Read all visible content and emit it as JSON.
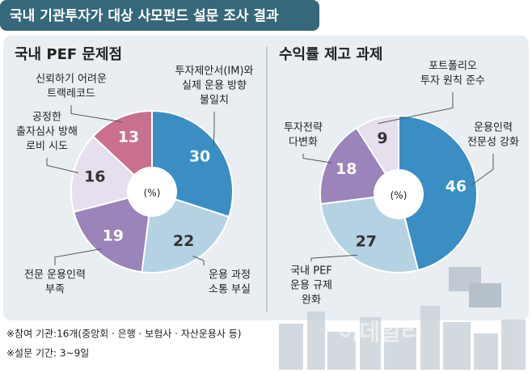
{
  "header": {
    "title": "국내 기관투자가 대상 사모펀드 설문 조사 결과"
  },
  "chart_data": [
    {
      "type": "donut",
      "title": "국내 PEF 문제점",
      "center_label": "(%)",
      "categories": [
        [
          "투자제안서(IM)와",
          "실제 운용 방향",
          "불일치"
        ],
        [
          "운용 과정",
          "소통 부실"
        ],
        [
          "전문 운용인력",
          "부족"
        ],
        [
          "공정한",
          "출자심사 방해",
          "로비 시도"
        ],
        [
          "신뢰하기 어려운",
          "트랙레코드"
        ]
      ],
      "values": [
        30,
        22,
        19,
        16,
        13
      ],
      "colors": [
        "#3a8ec4",
        "#b5d2e2",
        "#9a84b9",
        "#e6dfee",
        "#c9708f"
      ]
    },
    {
      "type": "donut",
      "title": "수익률 제고 과제",
      "center_label": "(%)",
      "categories": [
        [
          "운용인력",
          "전문성 강화"
        ],
        [
          "국내 PEF",
          "운용 규제",
          "완화"
        ],
        [
          "투자전략",
          "다변화"
        ],
        [
          "포트폴리오",
          "투자 원칙 준수"
        ]
      ],
      "values": [
        46,
        27,
        18,
        9
      ],
      "colors": [
        "#3a8ec4",
        "#b5d2e2",
        "#9a84b9",
        "#e6dfee"
      ]
    }
  ],
  "notes": [
    "※참여 기관:16개(중앙회 · 은행 · 보험사 · 자산운용사 등)",
    "※설문 기간: 3~9일"
  ],
  "watermark": "이데일리"
}
